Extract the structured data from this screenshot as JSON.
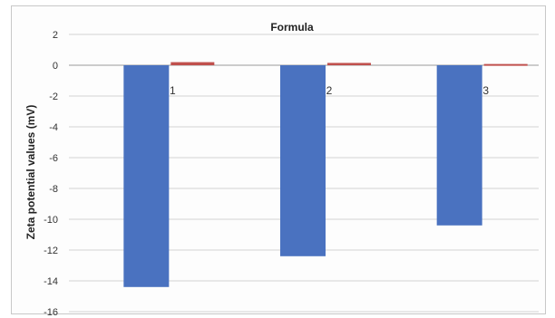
{
  "chart_data": {
    "type": "bar",
    "title": "Formula",
    "xlabel": "",
    "ylabel": "Zeta potential values (mV)",
    "categories": [
      "1",
      "2",
      "3"
    ],
    "series": [
      {
        "values": [
          -14.4,
          -12.4,
          -10.4
        ],
        "color": "#4a72c0"
      },
      {
        "values": [
          0.2,
          0.15,
          0.08
        ],
        "color": "#c0504d"
      }
    ],
    "ylim": [
      -16,
      2
    ],
    "yticks": [
      2,
      0,
      -2,
      -4,
      -6,
      -8,
      -10,
      -12,
      -14,
      -16
    ],
    "grid": true,
    "legend": "none"
  }
}
